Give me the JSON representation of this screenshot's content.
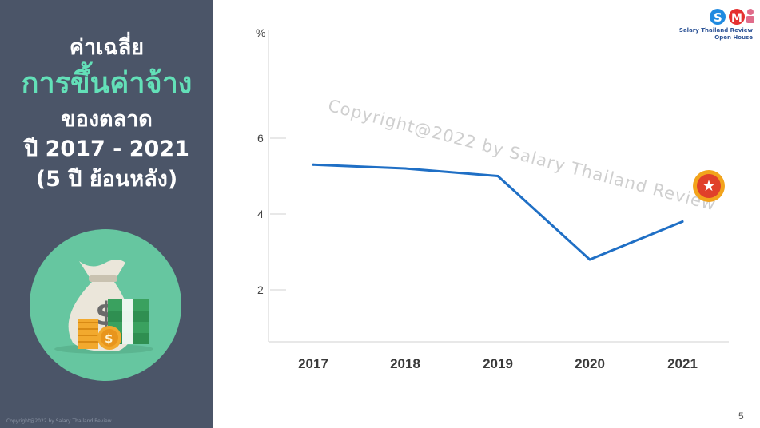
{
  "title": {
    "line1": "ค่าเฉลี่ย",
    "line2": "การขึ้นค่าจ้าง",
    "line3": "ของตลาด",
    "line4": "ปี 2017 - 2021",
    "line5": "(5 ปี ย้อนหลัง)"
  },
  "brand": {
    "line1": "Salary Thailand Review",
    "line2": "Open House",
    "logos": [
      "s-logo-icon",
      "m-logo-icon",
      "person-logo-icon"
    ]
  },
  "watermark": "Copyright@2022 by Salary Thailand Review",
  "left_copyright": "Copyright@2022 by Salary Thailand Review",
  "page_number": "5",
  "colors": {
    "panel": "#4b5568",
    "accent": "#63e0b8",
    "line": "#1f6fc5",
    "circle": "#66c6a0"
  },
  "chart_data": {
    "type": "line",
    "ylabel": "%",
    "categories": [
      "2017",
      "2018",
      "2019",
      "2020",
      "2021"
    ],
    "series": [
      {
        "values": [
          5.3,
          5.2,
          5.0,
          2.8,
          3.8
        ]
      }
    ],
    "y_ticks": [
      "2",
      "4",
      "6"
    ],
    "grid": false,
    "line_color": "#1f6fc5"
  }
}
